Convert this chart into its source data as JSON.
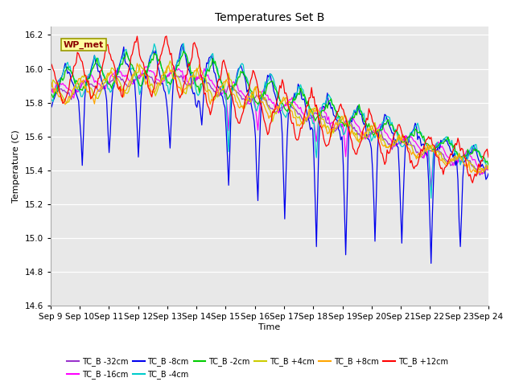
{
  "title": "Temperatures Set B",
  "xlabel": "Time",
  "ylabel": "Temperature (C)",
  "ylim": [
    14.6,
    16.25
  ],
  "background_color": "#ffffff",
  "plot_bg_color": "#e8e8e8",
  "legend_label": "WP_met",
  "series": [
    {
      "label": "TC_B -32cm",
      "color": "#9932CC"
    },
    {
      "label": "TC_B -16cm",
      "color": "#FF00FF"
    },
    {
      "label": "TC_B -8cm",
      "color": "#0000EE"
    },
    {
      "label": "TC_B -4cm",
      "color": "#00CCCC"
    },
    {
      "label": "TC_B -2cm",
      "color": "#00CC00"
    },
    {
      "label": "TC_B +4cm",
      "color": "#CCCC00"
    },
    {
      "label": "TC_B +8cm",
      "color": "#FFA500"
    },
    {
      "label": "TC_B +12cm",
      "color": "#FF0000"
    }
  ],
  "x_tick_labels": [
    "Sep 9",
    "Sep 10",
    "Sep 11",
    "Sep 12",
    "Sep 13",
    "Sep 14",
    "Sep 15",
    "Sep 16",
    "Sep 17",
    "Sep 18",
    "Sep 19",
    "Sep 20",
    "Sep 21",
    "Sep 22",
    "Sep 23",
    "Sep 24"
  ],
  "yticks": [
    14.6,
    14.8,
    15.0,
    15.2,
    15.4,
    15.6,
    15.8,
    16.0,
    16.2
  ],
  "n_days": 15,
  "pts_per_day": 24,
  "seed": 42
}
